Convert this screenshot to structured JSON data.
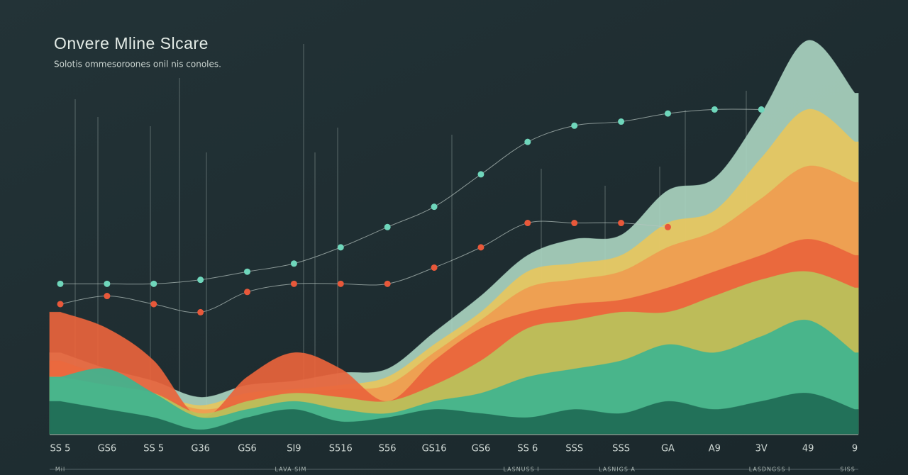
{
  "chart_data": {
    "type": "area",
    "title": "Onvere Mline Slcare",
    "subtitle": "Solotis ommesoroones onil nis conoles.",
    "categories": [
      "SS 5",
      "GS6",
      "SS 5",
      "G36",
      "GS6",
      "SI9",
      "S516",
      "S56",
      "GS16",
      "GS6",
      "SS 6",
      "SSS",
      "SSS",
      "GA",
      "A9",
      "3V",
      "49",
      "9"
    ],
    "ylim": [
      0,
      100
    ],
    "series": [
      {
        "color": "#a9d2bf",
        "values": [
          20,
          16,
          13,
          9,
          12,
          13,
          15,
          16,
          25,
          34,
          44,
          48,
          49,
          60,
          63,
          79,
          97,
          84
        ]
      },
      {
        "color": "#e7c65e",
        "values": [
          15,
          12,
          10,
          7,
          10,
          11,
          12,
          14,
          22,
          30,
          40,
          42,
          44,
          52,
          55,
          68,
          80,
          72
        ]
      },
      {
        "color": "#ef9c50",
        "values": [
          18,
          14,
          10,
          6,
          8,
          10,
          11,
          12,
          20,
          28,
          36,
          38,
          40,
          46,
          50,
          58,
          66,
          62
        ]
      },
      {
        "color": "#e9643c",
        "values": [
          30,
          26,
          18,
          4,
          14,
          20,
          16,
          8,
          18,
          26,
          30,
          32,
          33,
          36,
          40,
          44,
          48,
          44
        ]
      },
      {
        "color": "#b9c35b",
        "values": [
          14,
          12,
          10,
          5,
          8,
          10,
          9,
          8,
          12,
          18,
          26,
          28,
          30,
          30,
          34,
          38,
          40,
          36
        ]
      },
      {
        "color": "#3fb48f",
        "values": [
          14,
          16,
          10,
          4,
          6,
          8,
          6,
          5,
          8,
          10,
          14,
          16,
          18,
          22,
          20,
          24,
          28,
          20
        ]
      },
      {
        "color": "#1f6b55",
        "values": [
          8,
          6,
          4,
          1,
          4,
          6,
          3,
          4,
          6,
          5,
          4,
          6,
          5,
          8,
          6,
          8,
          10,
          6
        ]
      }
    ],
    "lines": [
      {
        "color": "#6fd6bb",
        "values": [
          37,
          37,
          37,
          38,
          40,
          42,
          46,
          51,
          56,
          64,
          72,
          76,
          77,
          79,
          80,
          80,
          null,
          null
        ]
      },
      {
        "color": "#e8583a",
        "values": [
          32,
          34,
          32,
          30,
          35,
          37,
          37,
          37,
          41,
          46,
          52,
          52,
          52,
          51,
          null,
          null,
          null,
          null
        ]
      }
    ],
    "footer_labels": [
      "Mil",
      "LAVA SIM",
      "LASNUSS I",
      "LASNIGS A",
      "LASDNGSS I",
      "SISS"
    ]
  }
}
